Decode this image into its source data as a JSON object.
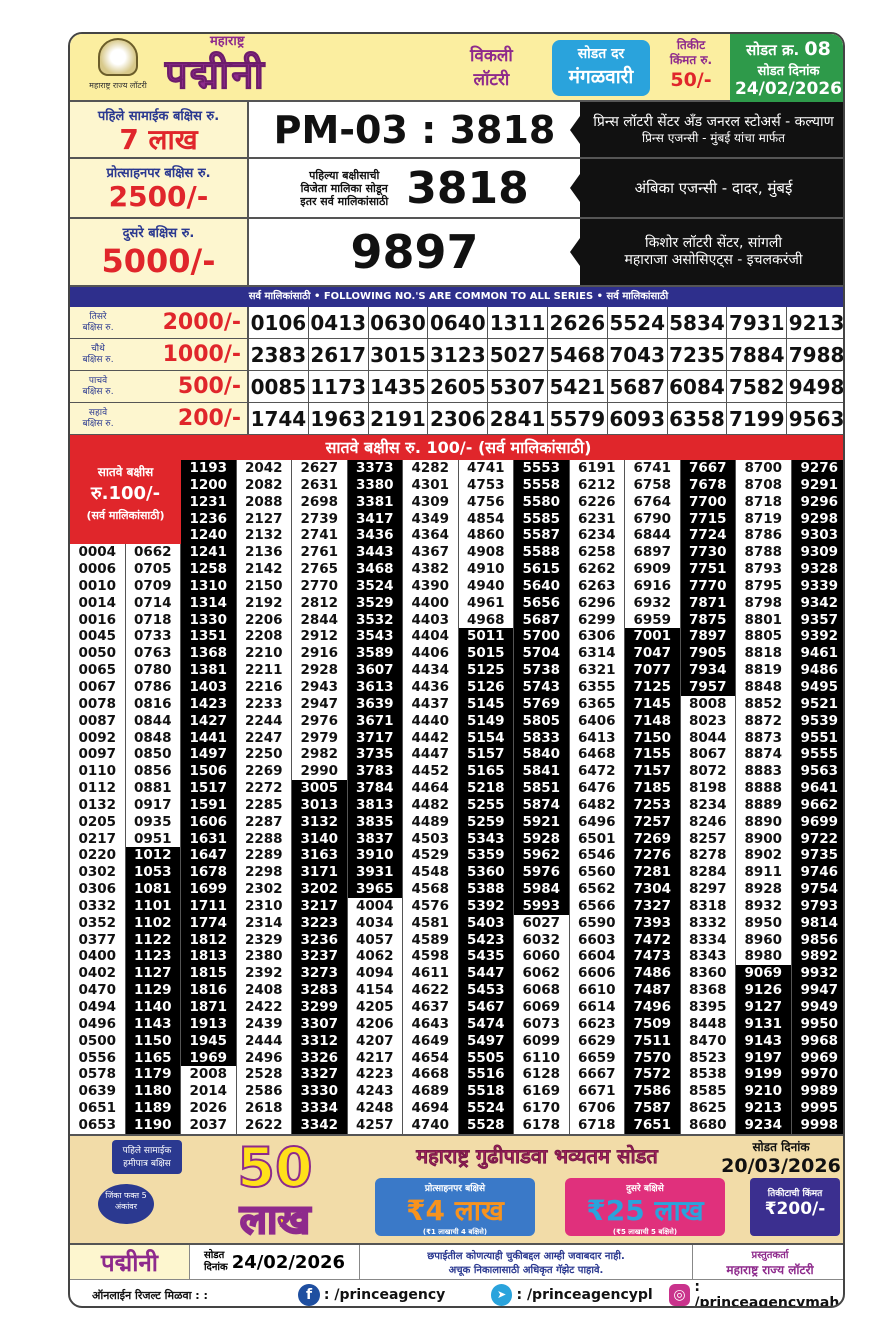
{
  "header": {
    "logo_caption": "महाराष्ट्र राज्य लॉटरी",
    "state": "महाराष्ट्र",
    "title": "पद्मीनी",
    "weekly": "विकली",
    "lottery": "लॉटरी",
    "draw_every": "सोडत दर",
    "day": "मंगळवारी",
    "ticket_label1": "तिकीट",
    "ticket_label2": "किंमत रु.",
    "ticket_price": "50/-",
    "draw_no_label": "सोडत क्र.",
    "draw_no": "08",
    "draw_date_label": "सोडत दिनांक",
    "draw_date": "24/02/2026"
  },
  "first": {
    "label": "पहिले सामाईक बक्षिस रु.",
    "amount": "7 लाख",
    "number": "PM-03 : 3818",
    "agent1": "प्रिन्स लॉटरी सेंटर अँड जनरल स्टोअर्स - कल्याण",
    "agent2": "प्रिन्स एजन्सी - मुंबई यांचा मार्फत"
  },
  "consolation": {
    "label": "प्रोत्साहनपर बक्षिस रु.",
    "amount": "2500/-",
    "note1": "पहिल्या बक्षीसाची",
    "note2": "विजेता मालिका सोडून",
    "note3": "इतर सर्व मालिकांसाठी",
    "number": "3818",
    "agent": "अंबिका एजन्सी - दादर, मुंबई"
  },
  "second": {
    "label": "दुसरे बक्षिस रु.",
    "amount": "5000/-",
    "number": "9897",
    "agent1": "किशोर लॉटरी सेंटर, सांगली",
    "agent2": "महाराजा असोसिएट्स - इचलकरंजी"
  },
  "common_banner": "सर्व मालिकांसाठी  •  FOLLOWING NO.'S ARE COMMON TO ALL SERIES  •  सर्व मालिकांसाठी",
  "common_rows": [
    {
      "t1": "तिसरे",
      "t2": "बक्षिस रु.",
      "amount": "2000/-",
      "numbers": [
        "0106",
        "0413",
        "0630",
        "0640",
        "1311",
        "2626",
        "5524",
        "5834",
        "7931",
        "9213"
      ]
    },
    {
      "t1": "चौथे",
      "t2": "बक्षिस रु.",
      "amount": "1000/-",
      "numbers": [
        "2383",
        "2617",
        "3015",
        "3123",
        "5027",
        "5468",
        "7043",
        "7235",
        "7884",
        "7988"
      ]
    },
    {
      "t1": "पाचवे",
      "t2": "बक्षिस रु.",
      "amount": "500/-",
      "numbers": [
        "0085",
        "1173",
        "1435",
        "2605",
        "5307",
        "5421",
        "5687",
        "6084",
        "7582",
        "9498"
      ]
    },
    {
      "t1": "सहावे",
      "t2": "बक्षिस रु.",
      "amount": "200/-",
      "numbers": [
        "1744",
        "1963",
        "2191",
        "2306",
        "2841",
        "5579",
        "6093",
        "6358",
        "7199",
        "9563"
      ]
    }
  ],
  "seventh": {
    "bar": "सातवे बक्षीस रु. 100/-  (सर्व मालिकांसाठी)",
    "box1": "सातवे बक्षीस",
    "box2": "रु.100/-",
    "box3": "(सर्व मालिकांसाठी)",
    "columns": [
      [
        "0004",
        "0006",
        "0010",
        "0014",
        "0016",
        "0045",
        "0050",
        "0065",
        "0067",
        "0078",
        "0087",
        "0092",
        "0097",
        "0110",
        "0112",
        "0132",
        "0205",
        "0217",
        "0220",
        "0302",
        "0306",
        "0332",
        "0352",
        "0377",
        "0400",
        "0402",
        "0470",
        "0494",
        "0496",
        "0500",
        "0556",
        "0578",
        "0639",
        "0651",
        "0653"
      ],
      [
        "0662",
        "0705",
        "0709",
        "0714",
        "0718",
        "0733",
        "0763",
        "0780",
        "0786",
        "0816",
        "0844",
        "0848",
        "0850",
        "0856",
        "0881",
        "0917",
        "0935",
        "0951",
        "1012",
        "1053",
        "1081",
        "1101",
        "1102",
        "1122",
        "1123",
        "1127",
        "1129",
        "1140",
        "1143",
        "1150",
        "1165",
        "1179",
        "1180",
        "1189",
        "1190"
      ],
      [
        "1193",
        "1200",
        "1231",
        "1236",
        "1240",
        "1241",
        "1258",
        "1310",
        "1314",
        "1330",
        "1351",
        "1368",
        "1381",
        "1403",
        "1423",
        "1427",
        "1441",
        "1497",
        "1506",
        "1517",
        "1591",
        "1606",
        "1631",
        "1647",
        "1678",
        "1699",
        "1711",
        "1774",
        "1812",
        "1813",
        "1815",
        "1816",
        "1871",
        "1913",
        "1945",
        "1969",
        "2008",
        "2014",
        "2026",
        "2037"
      ],
      [
        "2042",
        "2082",
        "2088",
        "2127",
        "2132",
        "2136",
        "2142",
        "2150",
        "2192",
        "2206",
        "2208",
        "2210",
        "2211",
        "2216",
        "2233",
        "2244",
        "2247",
        "2250",
        "2269",
        "2272",
        "2285",
        "2287",
        "2288",
        "2289",
        "2298",
        "2302",
        "2310",
        "2314",
        "2329",
        "2380",
        "2392",
        "2408",
        "2422",
        "2439",
        "2444",
        "2496",
        "2528",
        "2586",
        "2618",
        "2622"
      ],
      [
        "2627",
        "2631",
        "2698",
        "2739",
        "2741",
        "2761",
        "2765",
        "2770",
        "2812",
        "2844",
        "2912",
        "2916",
        "2928",
        "2943",
        "2947",
        "2976",
        "2979",
        "2982",
        "2990",
        "3005",
        "3013",
        "3132",
        "3140",
        "3163",
        "3171",
        "3202",
        "3217",
        "3223",
        "3236",
        "3237",
        "3273",
        "3283",
        "3299",
        "3307",
        "3312",
        "3326",
        "3327",
        "3330",
        "3334",
        "3342"
      ],
      [
        "3373",
        "3380",
        "3381",
        "3417",
        "3436",
        "3443",
        "3468",
        "3524",
        "3529",
        "3532",
        "3543",
        "3589",
        "3607",
        "3613",
        "3639",
        "3671",
        "3717",
        "3735",
        "3783",
        "3784",
        "3813",
        "3835",
        "3837",
        "3910",
        "3931",
        "3965",
        "4004",
        "4034",
        "4057",
        "4062",
        "4094",
        "4154",
        "4205",
        "4206",
        "4207",
        "4217",
        "4223",
        "4243",
        "4248",
        "4257"
      ],
      [
        "4282",
        "4301",
        "4309",
        "4349",
        "4364",
        "4367",
        "4382",
        "4390",
        "4400",
        "4403",
        "4404",
        "4406",
        "4434",
        "4436",
        "4437",
        "4440",
        "4442",
        "4447",
        "4452",
        "4464",
        "4482",
        "4489",
        "4503",
        "4529",
        "4548",
        "4568",
        "4576",
        "4581",
        "4589",
        "4598",
        "4611",
        "4622",
        "4637",
        "4643",
        "4649",
        "4654",
        "4668",
        "4689",
        "4694",
        "4740"
      ],
      [
        "4741",
        "4753",
        "4756",
        "4854",
        "4860",
        "4908",
        "4910",
        "4940",
        "4961",
        "4968",
        "5011",
        "5015",
        "5125",
        "5126",
        "5145",
        "5149",
        "5154",
        "5157",
        "5165",
        "5218",
        "5255",
        "5259",
        "5343",
        "5359",
        "5360",
        "5388",
        "5392",
        "5403",
        "5423",
        "5435",
        "5447",
        "5453",
        "5467",
        "5474",
        "5497",
        "5505",
        "5516",
        "5518",
        "5524",
        "5528"
      ],
      [
        "5553",
        "5558",
        "5580",
        "5585",
        "5587",
        "5588",
        "5615",
        "5640",
        "5656",
        "5687",
        "5700",
        "5704",
        "5738",
        "5743",
        "5769",
        "5805",
        "5833",
        "5840",
        "5841",
        "5851",
        "5874",
        "5921",
        "5928",
        "5962",
        "5976",
        "5984",
        "5993",
        "6027",
        "6032",
        "6060",
        "6062",
        "6068",
        "6069",
        "6073",
        "6099",
        "6110",
        "6128",
        "6169",
        "6170",
        "6178"
      ],
      [
        "6191",
        "6212",
        "6226",
        "6231",
        "6234",
        "6258",
        "6262",
        "6263",
        "6296",
        "6299",
        "6306",
        "6314",
        "6321",
        "6355",
        "6365",
        "6406",
        "6413",
        "6468",
        "6472",
        "6476",
        "6482",
        "6496",
        "6501",
        "6546",
        "6560",
        "6562",
        "6566",
        "6590",
        "6603",
        "6604",
        "6606",
        "6610",
        "6614",
        "6623",
        "6629",
        "6659",
        "6667",
        "6671",
        "6706",
        "6718"
      ],
      [
        "6741",
        "6758",
        "6764",
        "6790",
        "6844",
        "6897",
        "6909",
        "6916",
        "6932",
        "6959",
        "7001",
        "7047",
        "7077",
        "7125",
        "7145",
        "7148",
        "7150",
        "7155",
        "7157",
        "7185",
        "7253",
        "7257",
        "7269",
        "7276",
        "7281",
        "7304",
        "7327",
        "7393",
        "7472",
        "7473",
        "7486",
        "7487",
        "7496",
        "7509",
        "7511",
        "7570",
        "7572",
        "7586",
        "7587",
        "7651"
      ],
      [
        "7667",
        "7678",
        "7700",
        "7715",
        "7724",
        "7730",
        "7751",
        "7770",
        "7871",
        "7875",
        "7897",
        "7905",
        "7934",
        "7957",
        "8008",
        "8023",
        "8044",
        "8067",
        "8072",
        "8198",
        "8234",
        "8246",
        "8257",
        "8278",
        "8284",
        "8297",
        "8318",
        "8332",
        "8334",
        "8343",
        "8360",
        "8368",
        "8395",
        "8448",
        "8470",
        "8523",
        "8538",
        "8585",
        "8625",
        "8680"
      ],
      [
        "8700",
        "8708",
        "8718",
        "8719",
        "8786",
        "8788",
        "8793",
        "8795",
        "8798",
        "8801",
        "8805",
        "8818",
        "8819",
        "8848",
        "8852",
        "8872",
        "8873",
        "8874",
        "8883",
        "8888",
        "8889",
        "8890",
        "8900",
        "8902",
        "8911",
        "8928",
        "8932",
        "8950",
        "8960",
        "8980",
        "9069",
        "9126",
        "9127",
        "9131",
        "9143",
        "9197",
        "9199",
        "9210",
        "9213",
        "9234"
      ],
      [
        "9276",
        "9291",
        "9296",
        "9298",
        "9303",
        "9309",
        "9328",
        "9339",
        "9342",
        "9357",
        "9392",
        "9461",
        "9486",
        "9495",
        "9521",
        "9539",
        "9551",
        "9555",
        "9563",
        "9641",
        "9662",
        "9699",
        "9722",
        "9735",
        "9746",
        "9754",
        "9793",
        "9814",
        "9856",
        "9892",
        "9932",
        "9947",
        "9949",
        "9950",
        "9968",
        "9969",
        "9970",
        "9989",
        "9995",
        "9998"
      ]
    ]
  },
  "promo": {
    "badge": "पहिले सामाईक हमीपात्र बक्षिस",
    "amount_num": "50",
    "amount_word": "लाख",
    "headline": "महाराष्ट्र गुढीपाडवा भव्यतम सोडत",
    "date_label": "सोडत दिनांक",
    "date": "20/03/2026",
    "jackpot_note": "जिंका फक्त 5 अंकांवर",
    "box1_title": "प्रोत्साहनपर बक्षिसे",
    "box1_amount": "₹4 लाख",
    "box1_note": "(₹1 लाखाची 4 बक्षिसे)",
    "box2_title": "दुसरे बक्षिसे",
    "box2_amount": "₹25 लाख",
    "box2_note": "(₹5 लाखाची 5 बक्षिसे)",
    "ticket_label": "तिकीटाची किंमत",
    "ticket_price": "₹200/-"
  },
  "footer": {
    "brand": "पद्मीनी",
    "date_label1": "सोडत",
    "date_label2": "दिनांक",
    "date": "24/02/2026",
    "disclaimer1": "छपाईतील कोणत्याही चुकीबद्दल आम्ही जवाबदार नाही.",
    "disclaimer2": "अचूक निकालासाठी अधिकृत गॅझेट पाहावे.",
    "presenter_label": "प्रस्तुतकर्ता",
    "presenter": "महाराष्ट्र राज्य लॉटरी",
    "online_label": "ऑनलाईन रिजल्ट मिळवा : :",
    "facebook": ": /princeagency",
    "telegram": ": /princeagencypl",
    "instagram": ": /princeagencymah"
  },
  "colors": {
    "purple": "#8e2a8c",
    "red": "#e0262b",
    "navy": "#2e2f8c",
    "green": "#2e9a4a",
    "blue": "#2aa3dc",
    "cream": "#fdf6cf"
  }
}
